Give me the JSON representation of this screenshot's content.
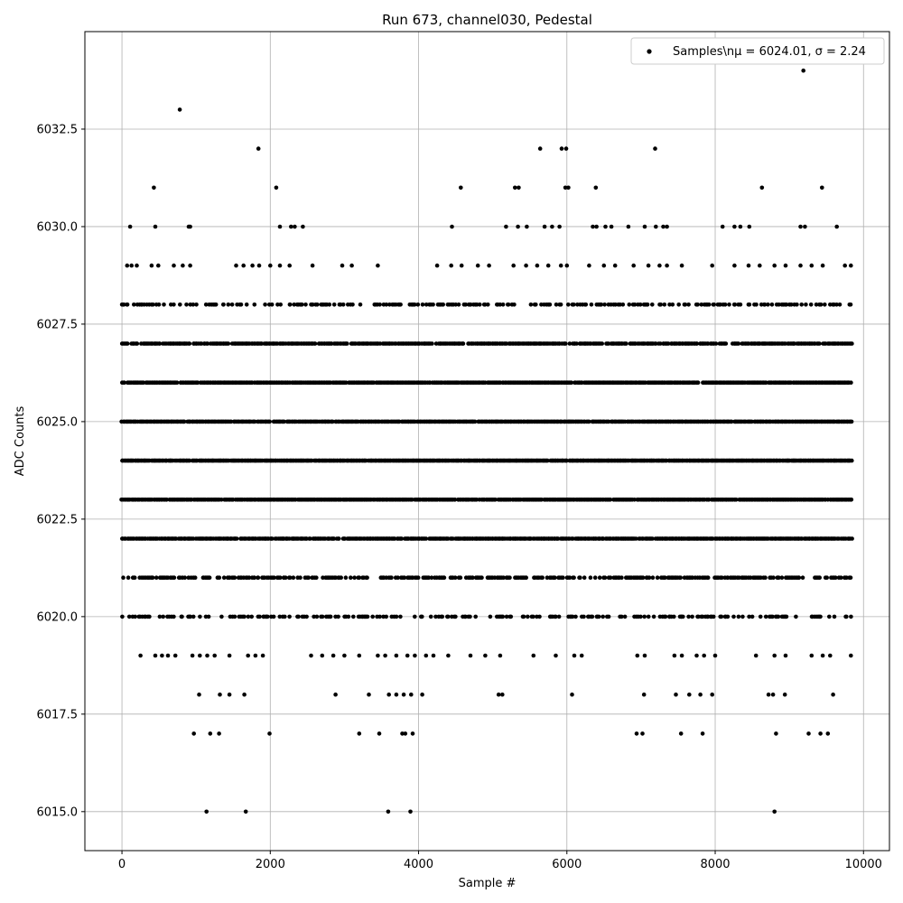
{
  "chart_data": {
    "type": "scatter",
    "title": "Run 673, channel030, Pedestal",
    "xlabel": "Sample #",
    "ylabel": "ADC Counts",
    "xlim": [
      -500,
      10350
    ],
    "ylim": [
      6014.0,
      6035.0
    ],
    "xticks": [
      0,
      2000,
      4000,
      6000,
      8000,
      10000
    ],
    "yticks": [
      6015.0,
      6017.5,
      6020.0,
      6022.5,
      6025.0,
      6027.5,
      6030.0,
      6032.5
    ],
    "ytick_labels": [
      "6015.0",
      "6017.5",
      "6020.0",
      "6022.5",
      "6025.0",
      "6027.5",
      "6030.0",
      "6032.5"
    ],
    "xtick_labels": [
      "0",
      "2000",
      "4000",
      "6000",
      "8000",
      "10000"
    ],
    "grid": true,
    "legend_position": "top-right",
    "series": [
      {
        "name": "Samples\\nμ = 6024.01, σ = 2.24",
        "marker_color": "#000000",
        "dense_bands": [
          {
            "y": 6021,
            "x_start": 0,
            "x_end": 9840,
            "density": 0.55
          },
          {
            "y": 6022,
            "x_start": 0,
            "x_end": 9840,
            "density": 0.9
          },
          {
            "y": 6023,
            "x_start": 0,
            "x_end": 9840,
            "density": 0.95
          },
          {
            "y": 6024,
            "x_start": 0,
            "x_end": 9840,
            "density": 0.97
          },
          {
            "y": 6025,
            "x_start": 0,
            "x_end": 9840,
            "density": 0.95
          },
          {
            "y": 6026,
            "x_start": 0,
            "x_end": 9840,
            "density": 0.92
          },
          {
            "y": 6027,
            "x_start": 0,
            "x_end": 9840,
            "density": 0.85
          },
          {
            "y": 6028,
            "x_start": 0,
            "x_end": 9840,
            "density": 0.35
          },
          {
            "y": 6020,
            "x_start": 0,
            "x_end": 9840,
            "density": 0.35
          }
        ],
        "sparse_points": [
          [
            250,
            6019
          ],
          [
            450,
            6019
          ],
          [
            540,
            6019
          ],
          [
            620,
            6019
          ],
          [
            720,
            6019
          ],
          [
            950,
            6019
          ],
          [
            1050,
            6019
          ],
          [
            1150,
            6019
          ],
          [
            1250,
            6019
          ],
          [
            1450,
            6019
          ],
          [
            1700,
            6019
          ],
          [
            1800,
            6019
          ],
          [
            1900,
            6019
          ],
          [
            2550,
            6019
          ],
          [
            2700,
            6019
          ],
          [
            2850,
            6019
          ],
          [
            3000,
            6019
          ],
          [
            3200,
            6019
          ],
          [
            3450,
            6019
          ],
          [
            3550,
            6019
          ],
          [
            3700,
            6019
          ],
          [
            3850,
            6019
          ],
          [
            3950,
            6019
          ],
          [
            4100,
            6019
          ],
          [
            4200,
            6019
          ],
          [
            4400,
            6019
          ],
          [
            4700,
            6019
          ],
          [
            4900,
            6019
          ],
          [
            5100,
            6019
          ],
          [
            5550,
            6019
          ],
          [
            5850,
            6019
          ],
          [
            6100,
            6019
          ],
          [
            6200,
            6019
          ],
          [
            6950,
            6019
          ],
          [
            7050,
            6019
          ],
          [
            7450,
            6019
          ],
          [
            7550,
            6019
          ],
          [
            7750,
            6019
          ],
          [
            7850,
            6019
          ],
          [
            8000,
            6019
          ],
          [
            8550,
            6019
          ],
          [
            8800,
            6019
          ],
          [
            8950,
            6019
          ],
          [
            9300,
            6019
          ],
          [
            9450,
            6019
          ],
          [
            9550,
            6019
          ],
          [
            9830,
            6019
          ],
          [
            1040,
            6018
          ],
          [
            1320,
            6018
          ],
          [
            1450,
            6018
          ],
          [
            1650,
            6018
          ],
          [
            2880,
            6018
          ],
          [
            3330,
            6018
          ],
          [
            3600,
            6018
          ],
          [
            3700,
            6018
          ],
          [
            3800,
            6018
          ],
          [
            3900,
            6018
          ],
          [
            4050,
            6018
          ],
          [
            5080,
            6018
          ],
          [
            5130,
            6018
          ],
          [
            6070,
            6018
          ],
          [
            7040,
            6018
          ],
          [
            7470,
            6018
          ],
          [
            7650,
            6018
          ],
          [
            7800,
            6018
          ],
          [
            7960,
            6018
          ],
          [
            8720,
            6018
          ],
          [
            8780,
            6018
          ],
          [
            8940,
            6018
          ],
          [
            9590,
            6018
          ],
          [
            970,
            6017
          ],
          [
            1190,
            6017
          ],
          [
            1310,
            6017
          ],
          [
            1990,
            6017
          ],
          [
            3200,
            6017
          ],
          [
            3470,
            6017
          ],
          [
            3780,
            6017
          ],
          [
            3820,
            6017
          ],
          [
            3920,
            6017
          ],
          [
            6940,
            6017
          ],
          [
            7020,
            6017
          ],
          [
            7540,
            6017
          ],
          [
            7830,
            6017
          ],
          [
            8820,
            6017
          ],
          [
            9260,
            6017
          ],
          [
            9420,
            6017
          ],
          [
            9520,
            6017
          ],
          [
            1140,
            6015
          ],
          [
            1670,
            6015
          ],
          [
            3590,
            6015
          ],
          [
            3890,
            6015
          ],
          [
            8800,
            6015
          ],
          [
            70,
            6029
          ],
          [
            130,
            6029
          ],
          [
            200,
            6029
          ],
          [
            400,
            6029
          ],
          [
            490,
            6029
          ],
          [
            700,
            6029
          ],
          [
            820,
            6029
          ],
          [
            920,
            6029
          ],
          [
            1540,
            6029
          ],
          [
            1640,
            6029
          ],
          [
            1760,
            6029
          ],
          [
            1850,
            6029
          ],
          [
            2000,
            6029
          ],
          [
            2130,
            6029
          ],
          [
            2260,
            6029
          ],
          [
            2570,
            6029
          ],
          [
            2970,
            6029
          ],
          [
            3100,
            6029
          ],
          [
            3450,
            6029
          ],
          [
            4250,
            6029
          ],
          [
            4440,
            6029
          ],
          [
            4580,
            6029
          ],
          [
            4800,
            6029
          ],
          [
            4950,
            6029
          ],
          [
            5280,
            6029
          ],
          [
            5450,
            6029
          ],
          [
            5600,
            6029
          ],
          [
            5750,
            6029
          ],
          [
            5920,
            6029
          ],
          [
            6000,
            6029
          ],
          [
            6300,
            6029
          ],
          [
            6500,
            6029
          ],
          [
            6650,
            6029
          ],
          [
            6900,
            6029
          ],
          [
            7100,
            6029
          ],
          [
            7250,
            6029
          ],
          [
            7350,
            6029
          ],
          [
            7550,
            6029
          ],
          [
            7960,
            6029
          ],
          [
            8260,
            6029
          ],
          [
            8450,
            6029
          ],
          [
            8600,
            6029
          ],
          [
            8800,
            6029
          ],
          [
            8950,
            6029
          ],
          [
            9150,
            6029
          ],
          [
            9300,
            6029
          ],
          [
            9450,
            6029
          ],
          [
            9750,
            6029
          ],
          [
            9830,
            6029
          ],
          [
            110,
            6030
          ],
          [
            450,
            6030
          ],
          [
            900,
            6030
          ],
          [
            920,
            6030
          ],
          [
            2130,
            6030
          ],
          [
            2280,
            6030
          ],
          [
            2330,
            6030
          ],
          [
            2440,
            6030
          ],
          [
            4450,
            6030
          ],
          [
            5180,
            6030
          ],
          [
            5340,
            6030
          ],
          [
            5460,
            6030
          ],
          [
            5700,
            6030
          ],
          [
            5800,
            6030
          ],
          [
            5900,
            6030
          ],
          [
            6350,
            6030
          ],
          [
            6400,
            6030
          ],
          [
            6520,
            6030
          ],
          [
            6600,
            6030
          ],
          [
            6830,
            6030
          ],
          [
            7050,
            6030
          ],
          [
            7200,
            6030
          ],
          [
            7300,
            6030
          ],
          [
            7350,
            6030
          ],
          [
            8100,
            6030
          ],
          [
            8260,
            6030
          ],
          [
            8340,
            6030
          ],
          [
            8460,
            6030
          ],
          [
            9150,
            6030
          ],
          [
            9210,
            6030
          ],
          [
            9640,
            6030
          ],
          [
            430,
            6031
          ],
          [
            2080,
            6031
          ],
          [
            4570,
            6031
          ],
          [
            5300,
            6031
          ],
          [
            5350,
            6031
          ],
          [
            5980,
            6031
          ],
          [
            6020,
            6031
          ],
          [
            6390,
            6031
          ],
          [
            8630,
            6031
          ],
          [
            9440,
            6031
          ],
          [
            1840,
            6032
          ],
          [
            5640,
            6032
          ],
          [
            5930,
            6032
          ],
          [
            5990,
            6032
          ],
          [
            7190,
            6032
          ],
          [
            780,
            6033
          ],
          [
            9190,
            6034
          ]
        ]
      }
    ]
  }
}
